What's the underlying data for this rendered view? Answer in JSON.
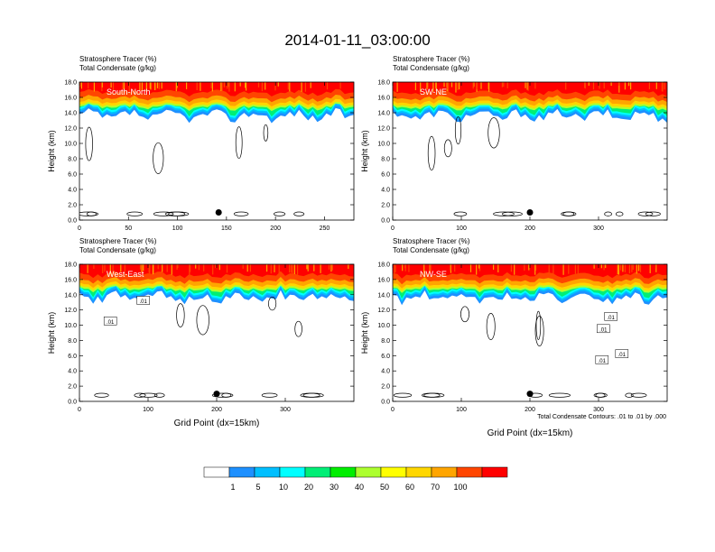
{
  "figure": {
    "title": "2014-01-11_03:00:00",
    "footnote": "Total Condensate Contours: .01 to .01 by .000",
    "xlabel": "Grid Point (dx=15km)"
  },
  "colorbar": {
    "labels": [
      "1",
      "5",
      "10",
      "20",
      "30",
      "40",
      "50",
      "60",
      "70",
      "100"
    ],
    "colors": [
      "#ffffff",
      "#1e90ff",
      "#00bfff",
      "#00ffff",
      "#00ee76",
      "#00ee00",
      "#adff2f",
      "#ffff00",
      "#ffd700",
      "#ffa500",
      "#ff4500",
      "#ff0000"
    ]
  },
  "chart_data": [
    {
      "type": "heatmap",
      "label": "South-North",
      "subtitle_1": "Stratosphere Tracer   (%)",
      "subtitle_2": "Total Condensate   (g/kg)",
      "ylabel": "Height (km)",
      "ylim": [
        0,
        18
      ],
      "yticks": [
        "0.0",
        "2.0",
        "4.0",
        "6.0",
        "8.0",
        "10.0",
        "12.0",
        "14.0",
        "16.0",
        "18.0"
      ],
      "xlim": [
        0,
        280
      ],
      "xticks": [
        0,
        50,
        100,
        150,
        200,
        250
      ],
      "xticklabels": [
        "0",
        "50",
        "100",
        "150",
        "200",
        "250"
      ],
      "marker": {
        "x": 142,
        "y": 1.0
      },
      "contour_labels": []
    },
    {
      "type": "heatmap",
      "label": "SW-NE",
      "subtitle_1": "Stratosphere Tracer   (%)",
      "subtitle_2": "Total Condensate   (g/kg)",
      "ylabel": "Height (km)",
      "ylim": [
        0,
        18
      ],
      "yticks": [
        "0.0",
        "2.0",
        "4.0",
        "6.0",
        "8.0",
        "10.0",
        "12.0",
        "14.0",
        "16.0",
        "18.0"
      ],
      "xlim": [
        0,
        400
      ],
      "xticks": [
        0,
        100,
        200,
        300
      ],
      "xticklabels": [
        "0",
        "100",
        "200",
        "300"
      ],
      "marker": {
        "x": 200,
        "y": 1.0
      },
      "contour_labels": []
    },
    {
      "type": "heatmap",
      "label": "West-East",
      "subtitle_1": "Stratosphere Tracer   (%)",
      "subtitle_2": "Total Condensate   (g/kg)",
      "ylabel": "Height (km)",
      "ylim": [
        0,
        18
      ],
      "yticks": [
        "0.0",
        "2.0",
        "4.0",
        "6.0",
        "8.0",
        "10.0",
        "12.0",
        "14.0",
        "16.0",
        "18.0"
      ],
      "xlim": [
        0,
        400
      ],
      "xticks": [
        0,
        100,
        200,
        300
      ],
      "xticklabels": [
        "0",
        "100",
        "200",
        "300"
      ],
      "marker": {
        "x": 200,
        "y": 1.0
      },
      "contour_labels": [
        {
          "text": ".01",
          "x": 93,
          "y": 13.2
        },
        {
          "text": ".01",
          "x": 45,
          "y": 10.5
        }
      ]
    },
    {
      "type": "heatmap",
      "label": "NW-SE",
      "subtitle_1": "Stratosphere Tracer   (%)",
      "subtitle_2": "Total Condensate   (g/kg)",
      "ylabel": "Height (km)",
      "ylim": [
        0,
        18
      ],
      "yticks": [
        "0.0",
        "2.0",
        "4.0",
        "6.0",
        "8.0",
        "10.0",
        "12.0",
        "14.0",
        "16.0",
        "18.0"
      ],
      "xlim": [
        0,
        400
      ],
      "xticks": [
        0,
        100,
        200,
        300
      ],
      "xticklabels": [
        "0",
        "100",
        "200",
        "300"
      ],
      "marker": {
        "x": 200,
        "y": 1.0
      },
      "contour_labels": [
        {
          "text": ".01",
          "x": 318,
          "y": 11.1
        },
        {
          "text": ".01",
          "x": 307,
          "y": 9.5
        },
        {
          "text": ".01",
          "x": 305,
          "y": 5.4
        },
        {
          "text": ".01",
          "x": 334,
          "y": 6.2
        }
      ]
    }
  ]
}
